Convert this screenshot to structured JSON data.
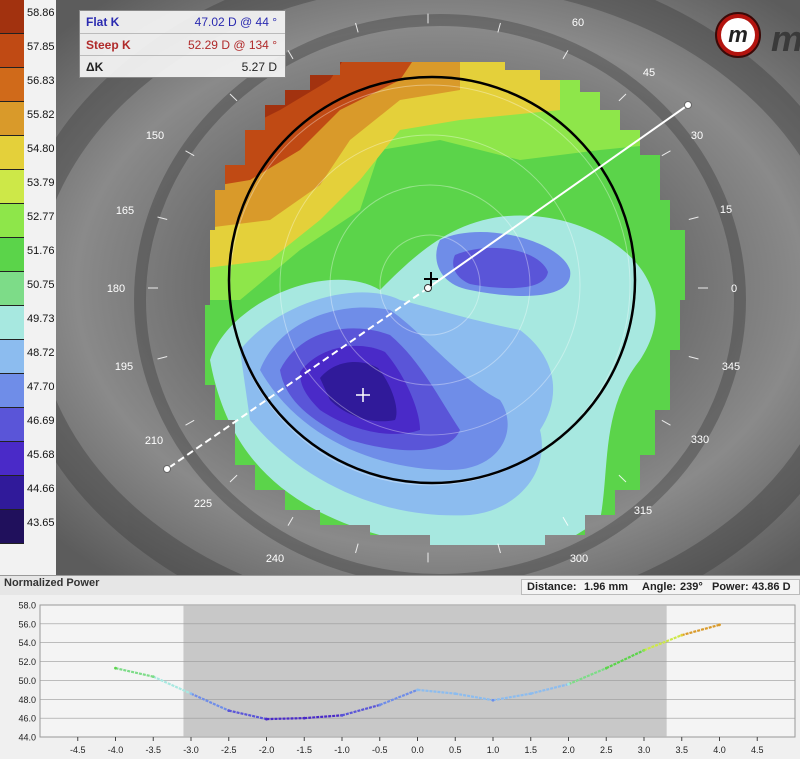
{
  "scale": {
    "labels": [
      "58.86",
      "57.85",
      "56.83",
      "55.82",
      "54.80",
      "53.79",
      "52.77",
      "51.76",
      "50.75",
      "49.73",
      "48.72",
      "47.70",
      "46.69",
      "45.68",
      "44.66",
      "43.65"
    ],
    "colors": [
      "#a2320f",
      "#c04a14",
      "#d06a1a",
      "#d99a2a",
      "#e4d03a",
      "#cde848",
      "#8ee64a",
      "#5bd44a",
      "#7ddc88",
      "#a7e8e0",
      "#8cbcef",
      "#6f8de8",
      "#5a55d8",
      "#4a2ac8",
      "#301a9a",
      "#20105c"
    ]
  },
  "keratometry": {
    "flat_k": {
      "label": "Flat K",
      "value": "47.02 D @  44 °",
      "color": "#2a2ab0"
    },
    "steep_k": {
      "label": "Steep K",
      "value": "52.29 D @ 134 °",
      "color": "#b02a2a"
    },
    "delta_k": {
      "label": "ΔK",
      "value": "5.27 D"
    }
  },
  "angles": [
    "0",
    "15",
    "30",
    "45",
    "60",
    "150",
    "165",
    "180",
    "195",
    "210",
    "225",
    "240",
    "300",
    "315",
    "330",
    "345"
  ],
  "logo": {
    "glyph": "m",
    "text": "m"
  },
  "profile_panel": {
    "title": "Normalized Power",
    "distance_label": "Distance:",
    "distance_value": "1.96 mm",
    "angle_label": "Angle:",
    "angle_value": "239°",
    "power_label": "Power:",
    "power_value": "43.86 D"
  },
  "chart_data": {
    "type": "line",
    "title": "Normalized Power",
    "xlabel": "",
    "ylabel": "",
    "xlim": [
      -5.0,
      5.0
    ],
    "ylim": [
      44.0,
      58.0
    ],
    "x_ticks": [
      "-4.5",
      "-4.0",
      "-3.5",
      "-3.0",
      "-2.5",
      "-2.0",
      "-1.5",
      "-1.0",
      "-0.5",
      "0.0",
      "0.5",
      "1.0",
      "1.5",
      "2.0",
      "2.5",
      "3.0",
      "3.5",
      "4.0",
      "4.5"
    ],
    "y_ticks": [
      "44.0",
      "46.0",
      "48.0",
      "50.0",
      "52.0",
      "54.0",
      "56.0",
      "58.0"
    ],
    "shaded_range": [
      -3.1,
      3.3
    ],
    "x": [
      -4.0,
      -3.5,
      -3.0,
      -2.5,
      -2.0,
      -1.5,
      -1.0,
      -0.5,
      0.0,
      0.5,
      1.0,
      1.5,
      2.0,
      2.5,
      3.0,
      3.5,
      4.0
    ],
    "values": [
      51.3,
      50.4,
      48.6,
      46.8,
      45.9,
      46.0,
      46.3,
      47.4,
      49.0,
      48.6,
      47.9,
      48.6,
      49.6,
      51.3,
      53.2,
      54.8,
      55.9
    ]
  }
}
